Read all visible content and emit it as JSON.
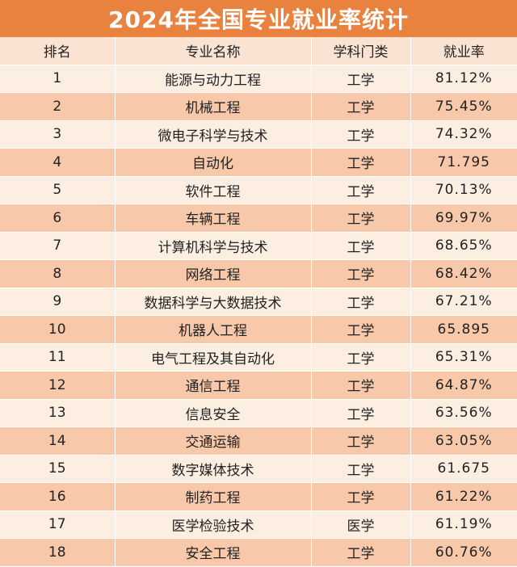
{
  "title": "2024年全国专业就业率统计",
  "headers": [
    "排名",
    "专业名称",
    "学科门类",
    "就业率"
  ],
  "rows": [
    {
      "rank": "1",
      "major": "能源与动力工程",
      "category": "工学",
      "rate": "81.12%"
    },
    {
      "rank": "2",
      "major": "机械工程",
      "category": "工学",
      "rate": "75.45%"
    },
    {
      "rank": "3",
      "major": "微电子科学与技术",
      "category": "工学",
      "rate": "74.32%"
    },
    {
      "rank": "4",
      "major": "自动化",
      "category": "工学",
      "rate": "71.795"
    },
    {
      "rank": "5",
      "major": "软件工程",
      "category": "工学",
      "rate": "70.13%"
    },
    {
      "rank": "6",
      "major": "车辆工程",
      "category": "工学",
      "rate": "69.97%"
    },
    {
      "rank": "7",
      "major": "计算机科学与技术",
      "category": "工学",
      "rate": "68.65%"
    },
    {
      "rank": "8",
      "major": "网络工程",
      "category": "工学",
      "rate": "68.42%"
    },
    {
      "rank": "9",
      "major": "数据科学与大数据技术",
      "category": "工学",
      "rate": "67.21%"
    },
    {
      "rank": "10",
      "major": "机器人工程",
      "category": "工学",
      "rate": "65.895"
    },
    {
      "rank": "11",
      "major": "电气工程及其自动化",
      "category": "工学",
      "rate": "65.31%"
    },
    {
      "rank": "12",
      "major": "通信工程",
      "category": "工学",
      "rate": "64.87%"
    },
    {
      "rank": "13",
      "major": "信息安全",
      "category": "工学",
      "rate": "63.56%"
    },
    {
      "rank": "14",
      "major": "交通运输",
      "category": "工学",
      "rate": "63.05%"
    },
    {
      "rank": "15",
      "major": "数字媒体技术",
      "category": "工学",
      "rate": "61.675"
    },
    {
      "rank": "16",
      "major": "制药工程",
      "category": "工学",
      "rate": "61.22%"
    },
    {
      "rank": "17",
      "major": "医学检验技术",
      "category": "医学",
      "rate": "61.19%"
    },
    {
      "rank": "18",
      "major": "安全工程",
      "category": "工学",
      "rate": "60.76%"
    }
  ],
  "colors": {
    "title_bg": "#e8823e",
    "header_bg": "#fbe3d3",
    "row_light": "#fdeee2",
    "row_dark": "#f7c8a9"
  }
}
